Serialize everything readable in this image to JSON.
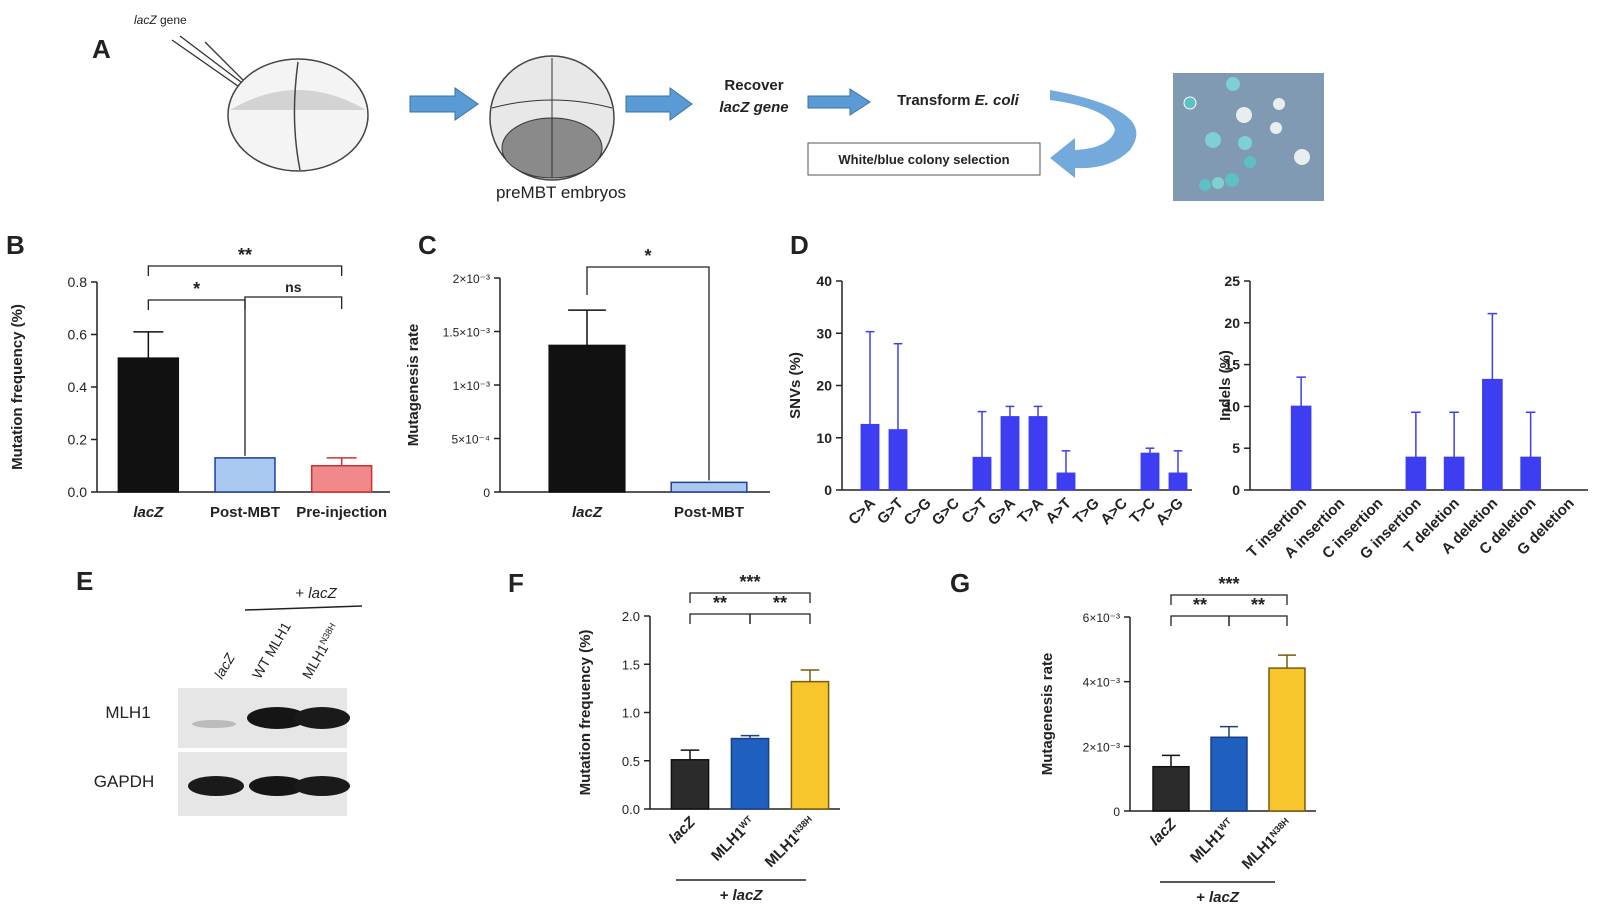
{
  "panel_labels": [
    "A",
    "B",
    "C",
    "D",
    "E",
    "F",
    "G"
  ],
  "schematic": {
    "injection_label": [
      "lacZ",
      " gene"
    ],
    "embryo_label": "preMBT embryos",
    "recover": [
      "Recover",
      "lacZ gene"
    ],
    "transform": [
      "Transform ",
      "E. coli"
    ],
    "selection": "White/blue colony selection"
  },
  "blot": {
    "group_label": [
      "+ ",
      "lacZ"
    ],
    "lanes": [
      {
        "text": "lacZ"
      },
      {
        "text": "WT MLH1"
      },
      {
        "text": "MLH1",
        "sup": "N38H"
      }
    ],
    "rows": [
      "MLH1",
      "GAPDH"
    ]
  },
  "chart_data": [
    {
      "type": "bar",
      "y_label": "Mutation frequency (%)",
      "categories": [
        {
          "text": "lacZ",
          "italic": true
        },
        {
          "text": "Post-MBT"
        },
        {
          "text": "Pre-injection"
        }
      ],
      "values": [
        0.51,
        0.13,
        0.1
      ],
      "errors": [
        0.1,
        null,
        0.03
      ],
      "colors": [
        "#111111",
        "#a9c8ef",
        "#f08a8a"
      ],
      "edge_colors": [
        "#111111",
        "#1f3f9f",
        "#d03030"
      ],
      "ylim": [
        0,
        0.8
      ],
      "yticks": [
        {
          "value": 0,
          "label": "0.0"
        },
        0.2,
        0.4,
        0.6,
        0.8
      ],
      "significance": [
        "**",
        "*",
        "ns"
      ]
    },
    {
      "type": "bar",
      "y_label": "Mutagenesis rate",
      "categories": [
        {
          "text": "lacZ",
          "italic": true
        },
        {
          "text": "Post-MBT"
        }
      ],
      "values": [
        0.00137,
        9e-05
      ],
      "errors": [
        0.00033,
        null
      ],
      "colors": [
        "#111111",
        "#a9c8ef"
      ],
      "edge_colors": [
        "#111111",
        "#1f3f9f"
      ],
      "ylim": [
        0,
        0.002
      ],
      "yticks": [
        0,
        {
          "value": 0.0005,
          "label": "5×10⁻⁴"
        },
        {
          "value": 0.001,
          "label": "1×10⁻³"
        },
        {
          "value": 0.0015,
          "label": "1.5×10⁻³"
        },
        {
          "value": 0.002,
          "label": "2×10⁻³"
        }
      ],
      "significance": [
        "*"
      ]
    },
    {
      "type": "bar",
      "y_label": "SNVs (%)",
      "categories": [
        "C>A",
        "G>T",
        "C>G",
        "G>C",
        "C>T",
        "G>A",
        "T>A",
        "A>T",
        "T>G",
        "A>C",
        "T>C",
        "A>G"
      ],
      "values": [
        12.5,
        11.5,
        0,
        0,
        6.2,
        14,
        14,
        3.2,
        0,
        0,
        7,
        3.2
      ],
      "errors": [
        17.8,
        16.5,
        null,
        null,
        8.8,
        2,
        2,
        4.3,
        null,
        null,
        1,
        4.3
      ],
      "color": "#3d3df2",
      "ylim": [
        0,
        40
      ],
      "yticks": [
        0,
        10,
        20,
        30,
        40
      ]
    },
    {
      "type": "bar",
      "y_label": "Indels (%)",
      "categories": [
        "T insertion",
        "A insertion",
        "C insertion",
        "G insertion",
        "T deletion",
        "A deletion",
        "C deletion",
        "G deletion"
      ],
      "values": [
        10,
        0,
        0,
        3.9,
        3.9,
        13.2,
        3.9,
        0
      ],
      "errors": [
        3.5,
        null,
        null,
        5.4,
        5.4,
        7.9,
        5.4,
        null
      ],
      "color": "#3d3df2",
      "ylim": [
        0,
        25
      ],
      "yticks": [
        0,
        5,
        10,
        15,
        20,
        25
      ]
    },
    {
      "type": "bar",
      "y_label": "Mutation frequency (%)",
      "group_label": "+ lacZ",
      "categories": [
        {
          "text": "lacZ",
          "italic": true
        },
        {
          "text": "MLH1",
          "sup": "WT"
        },
        {
          "text": "MLH1",
          "sup": "N38H"
        }
      ],
      "values": [
        0.51,
        0.73,
        1.32
      ],
      "errors": [
        0.1,
        0.03,
        0.12
      ],
      "colors": [
        "#2b2b2b",
        "#1f5fbf",
        "#f7c52c"
      ],
      "edge_colors": [
        "#111111",
        "#1a3f80",
        "#7a5a10"
      ],
      "ylim": [
        0,
        2.0
      ],
      "yticks": [
        {
          "value": 0,
          "label": "0.0"
        },
        0.5,
        {
          "value": 1,
          "label": "1.0"
        },
        1.5,
        {
          "value": 2,
          "label": "2.0"
        }
      ],
      "significance": [
        "***",
        "**",
        "**"
      ]
    },
    {
      "type": "bar",
      "y_label": "Mutagenesis rate",
      "group_label": "+ lacZ",
      "categories": [
        {
          "text": "lacZ",
          "italic": true
        },
        {
          "text": "MLH1",
          "sup": "WT"
        },
        {
          "text": "MLH1",
          "sup": "N38H"
        }
      ],
      "values": [
        0.00137,
        0.00228,
        0.00442
      ],
      "errors": [
        0.00035,
        0.00033,
        0.0004
      ],
      "colors": [
        "#2b2b2b",
        "#1f5fbf",
        "#f7c52c"
      ],
      "edge_colors": [
        "#111111",
        "#1a3f80",
        "#7a5a10"
      ],
      "ylim": [
        0,
        0.006
      ],
      "yticks": [
        0,
        {
          "value": 0.002,
          "label": "2×10⁻³"
        },
        {
          "value": 0.004,
          "label": "4×10⁻³"
        },
        {
          "value": 0.006,
          "label": "6×10⁻³"
        }
      ],
      "significance": [
        "***",
        "**",
        "**"
      ]
    }
  ]
}
